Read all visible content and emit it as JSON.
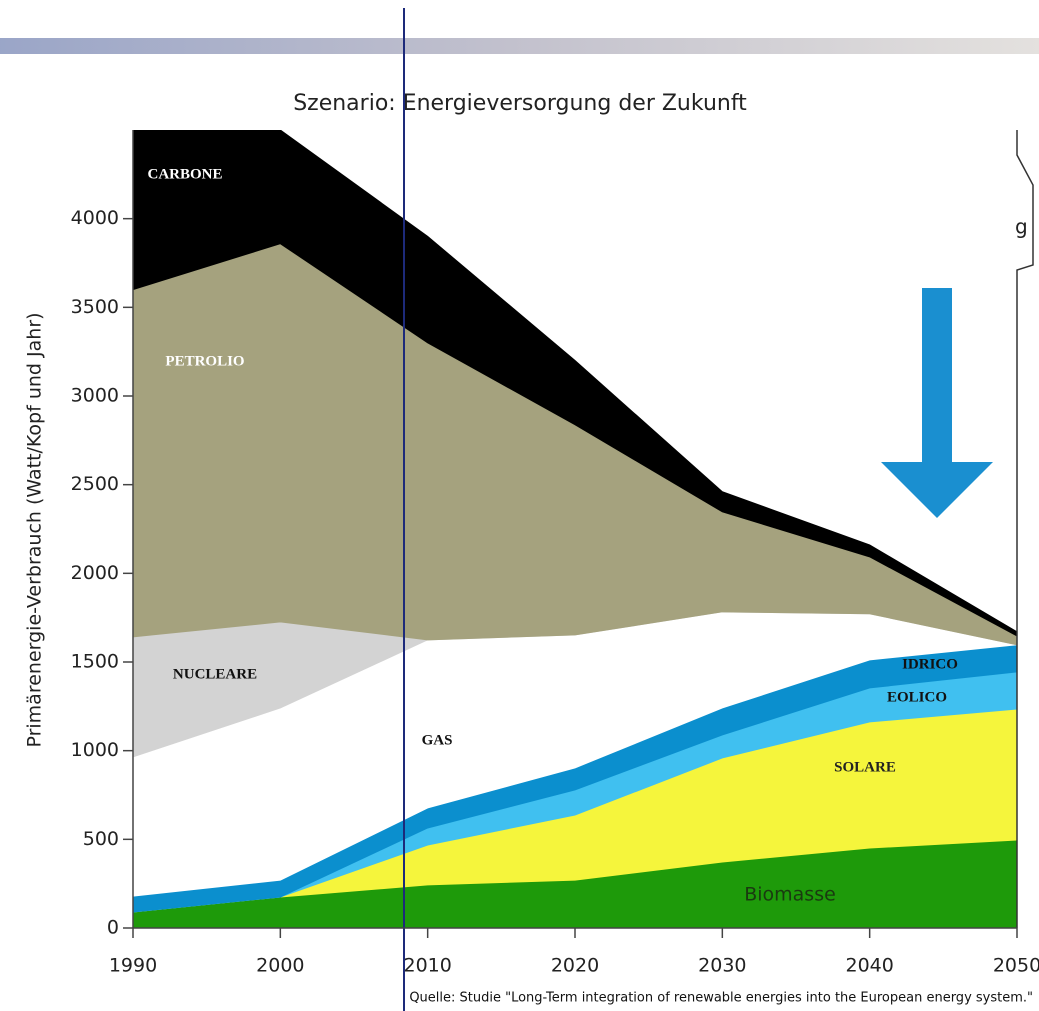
{
  "chart_data": {
    "type": "stacked-area",
    "title": "Szenario: Energieversorgung der Zukunft",
    "y_label": "Primärenergie-Verbrauch (Watt/Kopf und Jahr)",
    "source": "Quelle:  Studie \"Long-Term integration of renewable energies into the European energy system.\"",
    "annotations": [
      "g"
    ],
    "x": [
      1990,
      2000,
      2010,
      2020,
      2030,
      2040,
      2050
    ],
    "series": [
      {
        "name": "Biomasse",
        "color": "#1e9a0a",
        "values": [
          90,
          175,
          243,
          270,
          372,
          451,
          496
        ]
      },
      {
        "name": "SOLARE",
        "color": "#f5f53c",
        "values": [
          0,
          0,
          225,
          367,
          587,
          711,
          739
        ]
      },
      {
        "name": "EOLICO",
        "color": "#40c0f0",
        "values": [
          0,
          0,
          96,
          142,
          130,
          192,
          209
        ]
      },
      {
        "name": "IDRICO",
        "color": "#0b8fce",
        "values": [
          90,
          95,
          113,
          124,
          152,
          158,
          153
        ]
      },
      {
        "name": "GAS",
        "color": "#ffffff",
        "values": [
          785,
          971,
          948,
          750,
          542,
          260,
          0
        ]
      },
      {
        "name": "NUCLEARE",
        "color": "#d3d3d3",
        "values": [
          677,
          485,
          0,
          0,
          0,
          0,
          0
        ]
      },
      {
        "name": "PETROLIO",
        "color": "#a5a27e",
        "values": [
          1958,
          2133,
          1675,
          1185,
          564,
          321,
          50
        ]
      },
      {
        "name": "CARBONE",
        "color": "#000000",
        "values": [
          900,
          641,
          600,
          362,
          113,
          67,
          23
        ]
      }
    ],
    "xlim": [
      1990,
      2050
    ],
    "xticks": [
      1990,
      2000,
      2010,
      2020,
      2030,
      2040,
      2050
    ],
    "ylim": [
      0,
      4500
    ],
    "yticks": [
      0,
      500,
      1000,
      1500,
      2000,
      2500,
      3000,
      3500,
      4000
    ]
  }
}
